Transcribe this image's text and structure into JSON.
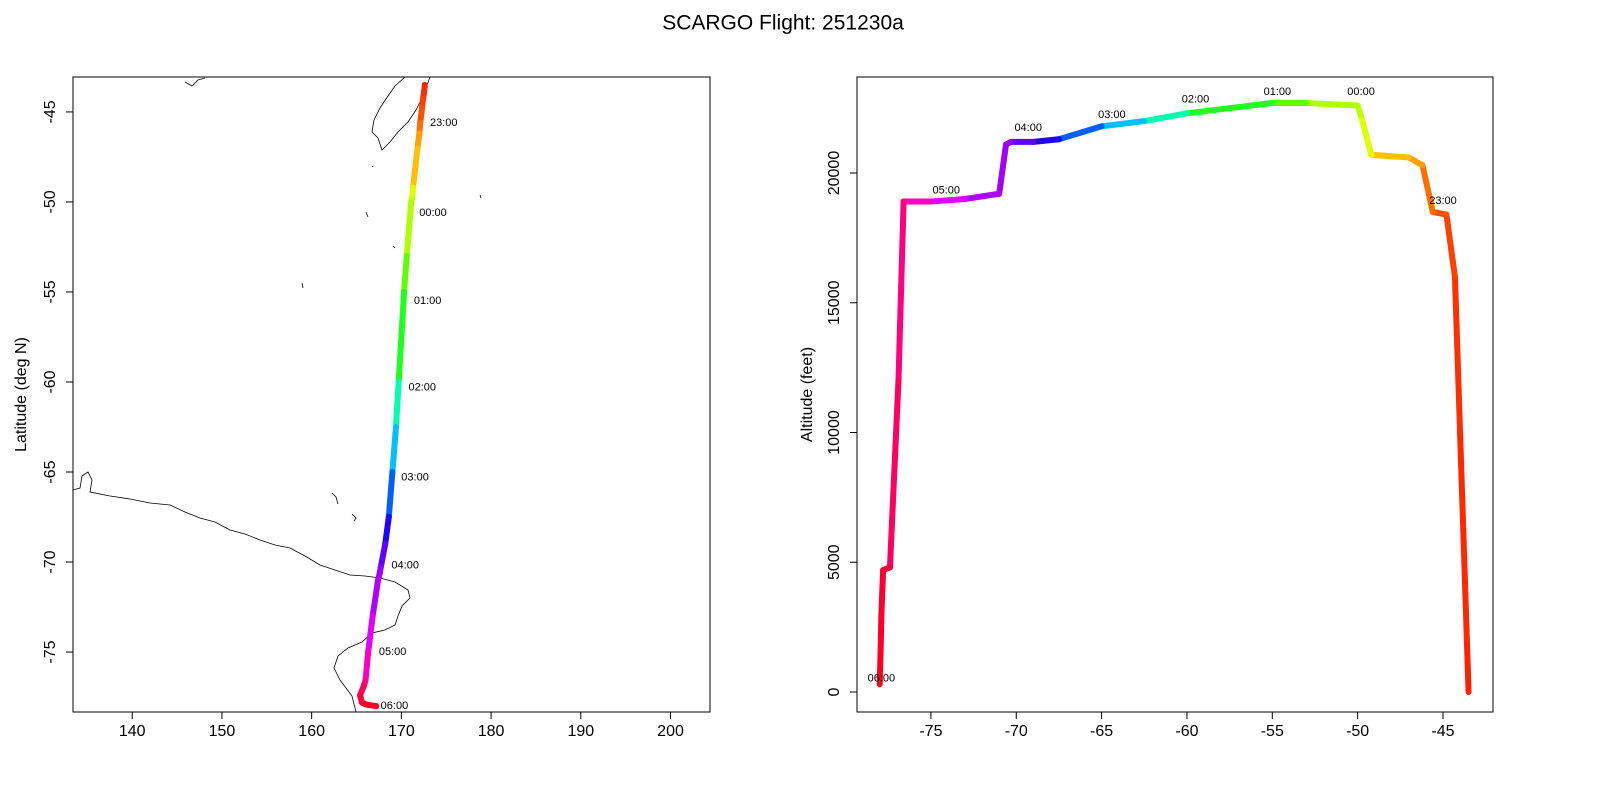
{
  "title": "SCARGO Flight: 251230a",
  "chart_data": [
    {
      "type": "map",
      "ylabel": "Latitude (deg N)",
      "xlim": [
        133.4,
        204.4
      ],
      "ylim": [
        -78.33,
        -43.06
      ],
      "xticks": [
        140,
        150,
        160,
        170,
        180,
        190,
        200
      ],
      "yticks": [
        -75,
        -70,
        -65,
        -60,
        -55,
        -50,
        -45
      ],
      "x": [
        172.6,
        172.6,
        172.5,
        172.4,
        172.3,
        172.1,
        172.0,
        171.8,
        171.3,
        171.2,
        171.1,
        170.6,
        170.3,
        169.7,
        169.4,
        169.0,
        168.6,
        168.2,
        167.7,
        167.6,
        167.4,
        166.8,
        166.3,
        166.0,
        165.8,
        165.4,
        165.6,
        166.0,
        166.5,
        167.2
      ],
      "y": [
        -43.5,
        -43.6,
        -44.0,
        -44.3,
        -44.8,
        -45.6,
        -46.2,
        -47.0,
        -49.2,
        -49.8,
        -50.0,
        -53.0,
        -55.0,
        -60.0,
        -62.5,
        -65.0,
        -67.5,
        -69.0,
        -70.3,
        -70.6,
        -71.0,
        -73.0,
        -75.0,
        -76.6,
        -76.9,
        -77.4,
        -77.8,
        -77.9,
        -77.95,
        -78.0
      ],
      "colors": [
        "#ff2000",
        "#ff2800",
        "#ff3000",
        "#ff4000",
        "#ff5000",
        "#ff7000",
        "#ffa000",
        "#ffc000",
        "#e0ff00",
        "#c0ff00",
        "#b0ff00",
        "#60ff00",
        "#20ff20",
        "#00ffb0",
        "#00c0ff",
        "#0060ff",
        "#2000ff",
        "#6000ff",
        "#9000ff",
        "#a000ff",
        "#b000ff",
        "#e000ff",
        "#ff00c0",
        "#ff0080",
        "#ff0060",
        "#ff0040",
        "#ff0030",
        "#ff0028",
        "#ff0020",
        "#ff0010"
      ],
      "annotations": [
        {
          "text": "23:00",
          "x": 172.3,
          "y": -45.5
        },
        {
          "text": "00:00",
          "x": 171.1,
          "y": -50.5
        },
        {
          "text": "01:00",
          "x": 170.5,
          "y": -55.4
        },
        {
          "text": "02:00",
          "x": 169.9,
          "y": -60.2
        },
        {
          "text": "03:00",
          "x": 169.1,
          "y": -65.2
        },
        {
          "text": "04:00",
          "x": 168.0,
          "y": -70.1
        },
        {
          "text": "05:00",
          "x": 166.6,
          "y": -74.9
        },
        {
          "text": "06:00",
          "x": 166.8,
          "y": -77.9
        }
      ]
    },
    {
      "type": "line",
      "ylabel": "Altitude (feet)",
      "xlim": [
        -79.33,
        -42.07
      ],
      "ylim": [
        -771,
        23700
      ],
      "xticks": [
        -75,
        -70,
        -65,
        -60,
        -55,
        -50,
        -45
      ],
      "yticks": [
        0,
        5000,
        10000,
        15000,
        20000
      ],
      "x": [
        -43.5,
        -43.6,
        -44.0,
        -44.3,
        -44.8,
        -45.6,
        -46.2,
        -47.0,
        -49.2,
        -49.8,
        -50.0,
        -53.0,
        -55.0,
        -60.0,
        -62.5,
        -65.0,
        -67.5,
        -69.0,
        -70.3,
        -70.6,
        -71.0,
        -73.0,
        -75.0,
        -76.6,
        -76.9,
        -77.4,
        -77.8,
        -77.9,
        -77.95,
        -78.0
      ],
      "y": [
        0,
        2000,
        10000,
        16000,
        18400,
        18500,
        20300,
        20600,
        20700,
        22200,
        22600,
        22700,
        22700,
        22300,
        22000,
        21800,
        21300,
        21200,
        21200,
        21100,
        19200,
        19000,
        18900,
        18900,
        12000,
        4800,
        4700,
        3000,
        1500,
        300
      ],
      "colors": [
        "#ff2000",
        "#ff2800",
        "#ff3000",
        "#ff4000",
        "#ff5000",
        "#ff7000",
        "#ffa000",
        "#ffc000",
        "#e0ff00",
        "#c0ff00",
        "#b0ff00",
        "#60ff00",
        "#20ff20",
        "#00ffb0",
        "#00c0ff",
        "#0060ff",
        "#2000ff",
        "#6000ff",
        "#9000ff",
        "#a000ff",
        "#b000ff",
        "#e000ff",
        "#ff00c0",
        "#ff0080",
        "#ff0060",
        "#ff0040",
        "#ff0030",
        "#ff0028",
        "#ff0020",
        "#ff0010"
      ],
      "annotations": [
        {
          "text": "23:00",
          "x": -45.0,
          "y": 18500
        },
        {
          "text": "00:00",
          "x": -49.8,
          "y": 22700
        },
        {
          "text": "01:00",
          "x": -54.7,
          "y": 22700
        },
        {
          "text": "02:00",
          "x": -59.5,
          "y": 22400
        },
        {
          "text": "03:00",
          "x": -64.4,
          "y": 21800
        },
        {
          "text": "04:00",
          "x": -69.3,
          "y": 21300
        },
        {
          "text": "05:00",
          "x": -74.1,
          "y": 18900
        },
        {
          "text": "06:00",
          "x": -77.9,
          "y": 100
        }
      ]
    }
  ]
}
